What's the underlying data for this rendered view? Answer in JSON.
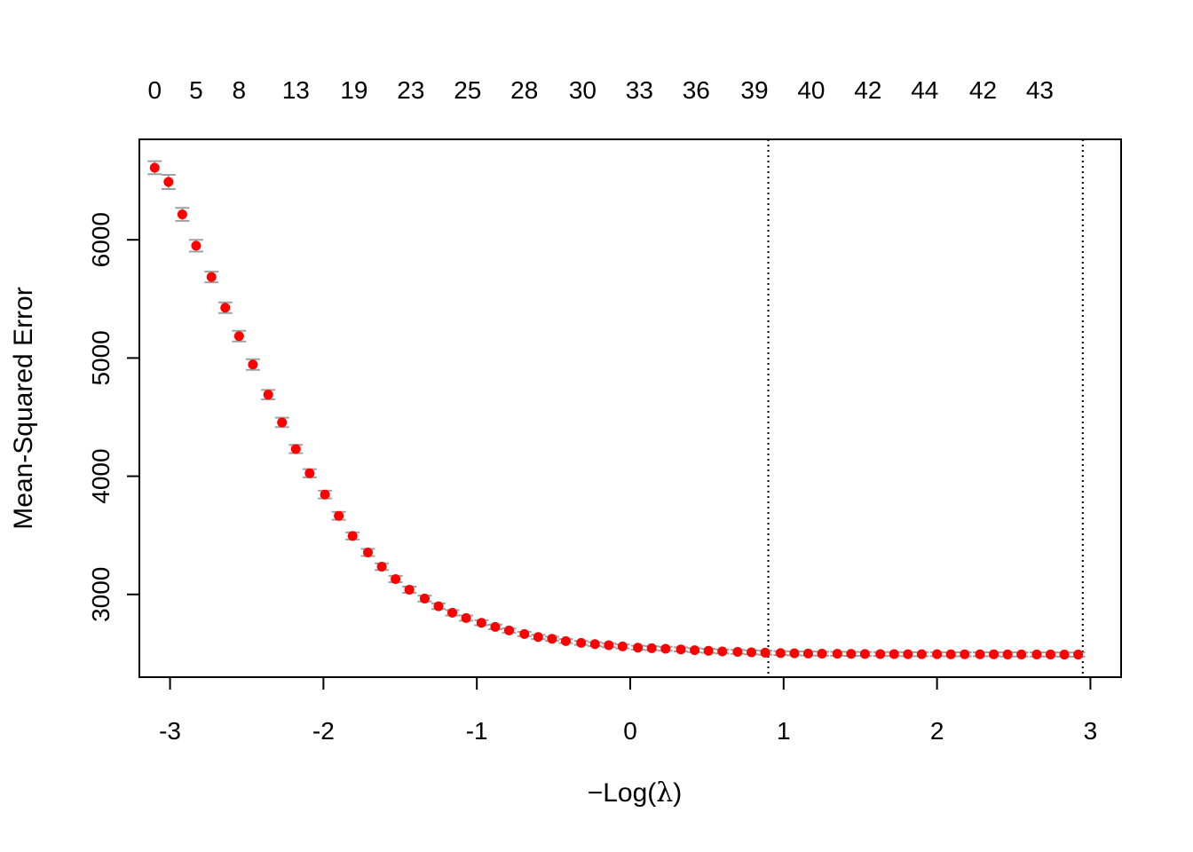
{
  "chart_data": {
    "type": "scatter",
    "title": "",
    "xlabel_prefix": "−",
    "xlabel_main": "Log(",
    "xlabel_symbol": "λ",
    "xlabel_suffix": ")",
    "ylabel": "Mean-Squared Error",
    "xlim": [
      -3.2,
      3.2
    ],
    "ylim": [
      2300,
      6850
    ],
    "x_ticks": [
      -3,
      -2,
      -1,
      0,
      1,
      2,
      3
    ],
    "y_ticks": [
      3000,
      4000,
      5000,
      6000
    ],
    "top_axis_labels": [
      {
        "x": -3.1,
        "label": "0"
      },
      {
        "x": -2.83,
        "label": "5"
      },
      {
        "x": -2.55,
        "label": "8"
      },
      {
        "x": -2.18,
        "label": "13"
      },
      {
        "x": -1.8,
        "label": "19"
      },
      {
        "x": -1.43,
        "label": "23"
      },
      {
        "x": -1.06,
        "label": "25"
      },
      {
        "x": -0.69,
        "label": "28"
      },
      {
        "x": -0.31,
        "label": "30"
      },
      {
        "x": 0.06,
        "label": "33"
      },
      {
        "x": 0.43,
        "label": "36"
      },
      {
        "x": 0.81,
        "label": "39"
      },
      {
        "x": 1.18,
        "label": "40"
      },
      {
        "x": 1.55,
        "label": "42"
      },
      {
        "x": 1.92,
        "label": "44"
      },
      {
        "x": 2.3,
        "label": "42"
      },
      {
        "x": 2.67,
        "label": "43"
      }
    ],
    "vlines": [
      0.9,
      2.95
    ],
    "point_color": "#ff0000",
    "errorbar_color": "#a0a0a0",
    "series": [
      {
        "points": [
          {
            "x": -3.1,
            "y": 6610,
            "lo": 6555,
            "hi": 6665
          },
          {
            "x": -3.01,
            "y": 6490,
            "lo": 6430,
            "hi": 6550
          },
          {
            "x": -2.92,
            "y": 6215,
            "lo": 6160,
            "hi": 6270
          },
          {
            "x": -2.83,
            "y": 5950,
            "lo": 5900,
            "hi": 6000
          },
          {
            "x": -2.73,
            "y": 5685,
            "lo": 5640,
            "hi": 5730
          },
          {
            "x": -2.64,
            "y": 5425,
            "lo": 5380,
            "hi": 5470
          },
          {
            "x": -2.55,
            "y": 5185,
            "lo": 5140,
            "hi": 5230
          },
          {
            "x": -2.46,
            "y": 4945,
            "lo": 4900,
            "hi": 4990
          },
          {
            "x": -2.36,
            "y": 4690,
            "lo": 4650,
            "hi": 4730
          },
          {
            "x": -2.27,
            "y": 4455,
            "lo": 4415,
            "hi": 4495
          },
          {
            "x": -2.18,
            "y": 4230,
            "lo": 4195,
            "hi": 4265
          },
          {
            "x": -2.09,
            "y": 4025,
            "lo": 3990,
            "hi": 4060
          },
          {
            "x": -1.99,
            "y": 3845,
            "lo": 3812,
            "hi": 3878
          },
          {
            "x": -1.9,
            "y": 3665,
            "lo": 3632,
            "hi": 3698
          },
          {
            "x": -1.81,
            "y": 3495,
            "lo": 3465,
            "hi": 3525
          },
          {
            "x": -1.71,
            "y": 3355,
            "lo": 3325,
            "hi": 3385
          },
          {
            "x": -1.62,
            "y": 3235,
            "lo": 3207,
            "hi": 3263
          },
          {
            "x": -1.53,
            "y": 3130,
            "lo": 3103,
            "hi": 3157
          },
          {
            "x": -1.44,
            "y": 3040,
            "lo": 3014,
            "hi": 3066
          },
          {
            "x": -1.34,
            "y": 2965,
            "lo": 2940,
            "hi": 2990
          },
          {
            "x": -1.25,
            "y": 2900,
            "lo": 2876,
            "hi": 2924
          },
          {
            "x": -1.16,
            "y": 2845,
            "lo": 2822,
            "hi": 2868
          },
          {
            "x": -1.07,
            "y": 2800,
            "lo": 2778,
            "hi": 2822
          },
          {
            "x": -0.97,
            "y": 2760,
            "lo": 2739,
            "hi": 2781
          },
          {
            "x": -0.88,
            "y": 2725,
            "lo": 2705,
            "hi": 2745
          },
          {
            "x": -0.79,
            "y": 2695,
            "lo": 2676,
            "hi": 2714
          },
          {
            "x": -0.69,
            "y": 2665,
            "lo": 2646,
            "hi": 2684
          },
          {
            "x": -0.6,
            "y": 2640,
            "lo": 2622,
            "hi": 2658
          },
          {
            "x": -0.51,
            "y": 2625,
            "lo": 2607,
            "hi": 2643
          },
          {
            "x": -0.42,
            "y": 2605,
            "lo": 2588,
            "hi": 2622
          },
          {
            "x": -0.32,
            "y": 2590,
            "lo": 2573,
            "hi": 2607
          },
          {
            "x": -0.23,
            "y": 2580,
            "lo": 2563,
            "hi": 2597
          },
          {
            "x": -0.14,
            "y": 2570,
            "lo": 2553,
            "hi": 2587
          },
          {
            "x": -0.05,
            "y": 2560,
            "lo": 2543,
            "hi": 2577
          },
          {
            "x": 0.05,
            "y": 2550,
            "lo": 2533,
            "hi": 2567
          },
          {
            "x": 0.14,
            "y": 2545,
            "lo": 2528,
            "hi": 2562
          },
          {
            "x": 0.23,
            "y": 2540,
            "lo": 2523,
            "hi": 2557
          },
          {
            "x": 0.33,
            "y": 2535,
            "lo": 2518,
            "hi": 2552
          },
          {
            "x": 0.42,
            "y": 2528,
            "lo": 2511,
            "hi": 2545
          },
          {
            "x": 0.51,
            "y": 2523,
            "lo": 2506,
            "hi": 2540
          },
          {
            "x": 0.6,
            "y": 2518,
            "lo": 2501,
            "hi": 2535
          },
          {
            "x": 0.7,
            "y": 2514,
            "lo": 2497,
            "hi": 2531
          },
          {
            "x": 0.79,
            "y": 2510,
            "lo": 2493,
            "hi": 2527
          },
          {
            "x": 0.88,
            "y": 2507,
            "lo": 2490,
            "hi": 2524
          },
          {
            "x": 0.98,
            "y": 2504,
            "lo": 2487,
            "hi": 2521
          },
          {
            "x": 1.07,
            "y": 2502,
            "lo": 2485,
            "hi": 2519
          },
          {
            "x": 1.16,
            "y": 2500,
            "lo": 2483,
            "hi": 2517
          },
          {
            "x": 1.25,
            "y": 2499,
            "lo": 2482,
            "hi": 2516
          },
          {
            "x": 1.35,
            "y": 2498,
            "lo": 2481,
            "hi": 2515
          },
          {
            "x": 1.44,
            "y": 2497,
            "lo": 2480,
            "hi": 2514
          },
          {
            "x": 1.53,
            "y": 2496,
            "lo": 2479,
            "hi": 2513
          },
          {
            "x": 1.63,
            "y": 2495,
            "lo": 2478,
            "hi": 2512
          },
          {
            "x": 1.72,
            "y": 2495,
            "lo": 2478,
            "hi": 2512
          },
          {
            "x": 1.81,
            "y": 2494,
            "lo": 2477,
            "hi": 2511
          },
          {
            "x": 1.9,
            "y": 2494,
            "lo": 2477,
            "hi": 2511
          },
          {
            "x": 2.0,
            "y": 2494,
            "lo": 2477,
            "hi": 2511
          },
          {
            "x": 2.09,
            "y": 2493,
            "lo": 2476,
            "hi": 2510
          },
          {
            "x": 2.18,
            "y": 2493,
            "lo": 2476,
            "hi": 2510
          },
          {
            "x": 2.28,
            "y": 2493,
            "lo": 2476,
            "hi": 2510
          },
          {
            "x": 2.37,
            "y": 2493,
            "lo": 2476,
            "hi": 2510
          },
          {
            "x": 2.46,
            "y": 2492,
            "lo": 2475,
            "hi": 2509
          },
          {
            "x": 2.55,
            "y": 2492,
            "lo": 2475,
            "hi": 2509
          },
          {
            "x": 2.65,
            "y": 2492,
            "lo": 2475,
            "hi": 2509
          },
          {
            "x": 2.74,
            "y": 2492,
            "lo": 2475,
            "hi": 2509
          },
          {
            "x": 2.83,
            "y": 2491,
            "lo": 2474,
            "hi": 2508
          },
          {
            "x": 2.92,
            "y": 2491,
            "lo": 2474,
            "hi": 2508
          }
        ]
      }
    ]
  }
}
